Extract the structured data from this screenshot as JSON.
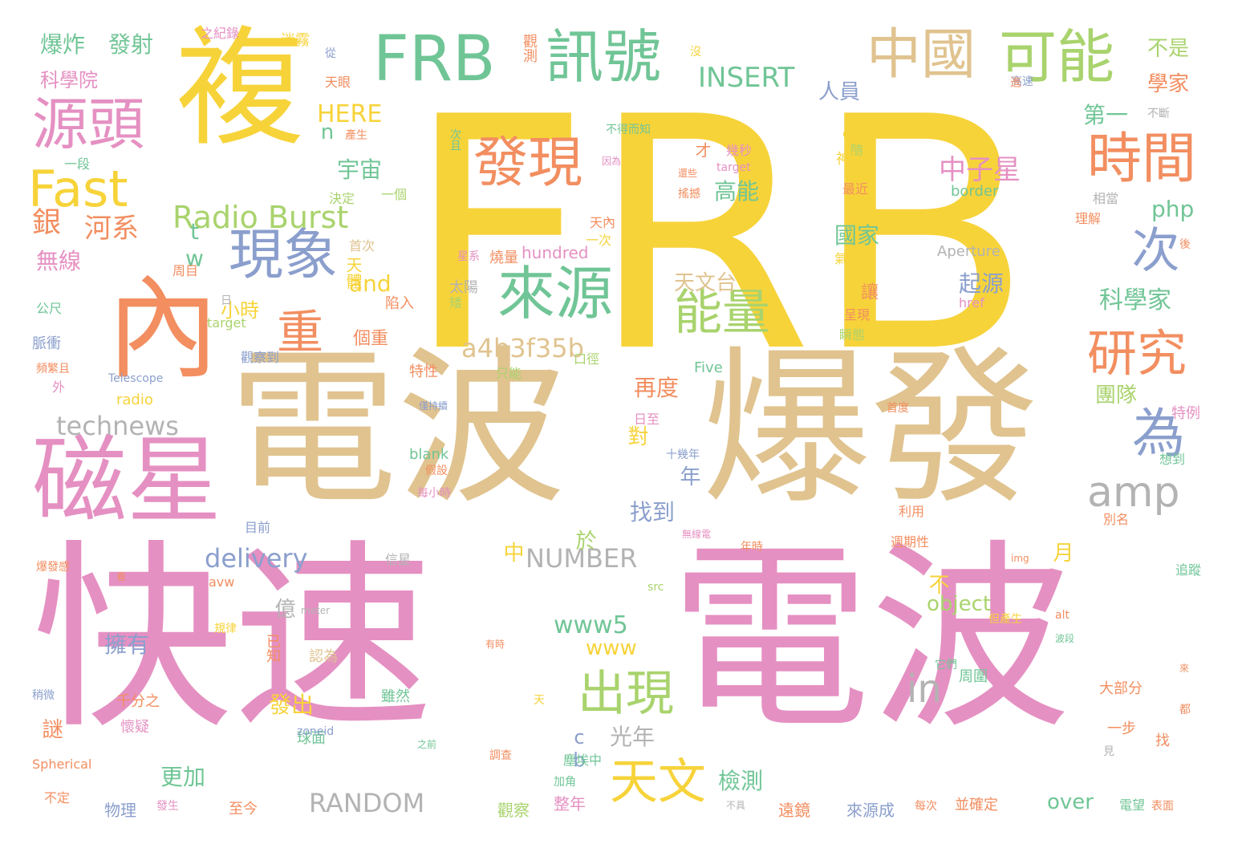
{
  "colors": {
    "yellow": "#f7d33a",
    "tan": "#e0c38f",
    "pink": "#e590c2",
    "green": "#70c596",
    "lime": "#a9d36d",
    "orange": "#f28e60",
    "blue": "#8b9fcd",
    "gray": "#b3b3b3"
  },
  "words": [
    "FRB",
    "電波",
    "爆發",
    "快速",
    "電波",
    "複",
    "內",
    "磁星",
    "FRB",
    "訊號",
    "中國",
    "可能",
    "源頭",
    "Fast",
    "發現",
    "來源",
    "時間",
    "次",
    "現象",
    "重",
    "能量",
    "研究",
    "為",
    "出現",
    "天文",
    "amp",
    "in",
    "Radio Burst",
    "a4b3f35b",
    "delivery",
    "NUMBER",
    "RANDOM",
    "technews",
    "www5",
    "www",
    "INSERT",
    "HERE",
    "中子星",
    "php",
    "爆炸",
    "發射",
    "科學院",
    "銀",
    "河系",
    "無線",
    "n",
    "宇宙",
    "高能",
    "國家",
    "人員",
    "第一",
    "學家",
    "不是",
    "天文台",
    "起源",
    "科學家",
    "團隊",
    "再度",
    "對",
    "年",
    "找到",
    "於",
    "中",
    "月",
    "不",
    "億",
    "擁有",
    "已知",
    "謎",
    "發出",
    "光年",
    "cb",
    "更加",
    "檢測",
    "over",
    "來源成",
    "遠鏡",
    "觀察",
    "整年",
    "物理",
    "至今",
    "公尺",
    "脈衝",
    "外",
    "object",
    "tw",
    "and",
    "小時",
    "個重",
    "讓",
    "呈現",
    "瞬態",
    "才",
    "幾秒",
    "決定",
    "一個",
    "隨",
    "因為",
    "還些",
    "搖撼",
    "最近",
    "border",
    "相當",
    "理解",
    "Aperture",
    "href",
    "後",
    "天內",
    "一次",
    "首次",
    "hundred",
    "天體",
    "氣體",
    "太陽",
    "矮",
    "陷入",
    "只能",
    "口徑",
    "特性",
    "Telescope",
    "radio",
    "Five",
    "特例",
    "首度",
    "blank",
    "假設",
    "想到",
    "每小時",
    "僅持續",
    "日至",
    "十幾年",
    "利用",
    "週期性",
    "別名",
    "無線電",
    "信星",
    "年時",
    "img",
    "追蹤",
    "爆發感",
    "看",
    "meter",
    "src",
    "avw",
    "alt",
    "但產生",
    "它們",
    "周圍",
    "雖然",
    "有時",
    "波段",
    "來",
    "千分之",
    "懷疑",
    "球面",
    "一步",
    "大部分",
    "都",
    "找",
    "Spherical",
    "不定",
    "發生",
    "不具",
    "每次",
    "並確定",
    "電望",
    "表面",
    "塵埃中",
    "加角",
    "調查",
    "之前",
    "見",
    "天",
    "稍微",
    "規律",
    "認為",
    "觀察到",
    "頻繁且",
    "目前",
    "zoneid",
    "之紀錄",
    "迷霧",
    "從",
    "天眼",
    "觀測",
    "沒",
    "高速",
    "進",
    "不得而知",
    "次且",
    "產生",
    "ck",
    "神秘",
    "target",
    "不斷",
    "一段",
    "周目",
    "星系",
    "燒量",
    "日",
    "target"
  ]
}
